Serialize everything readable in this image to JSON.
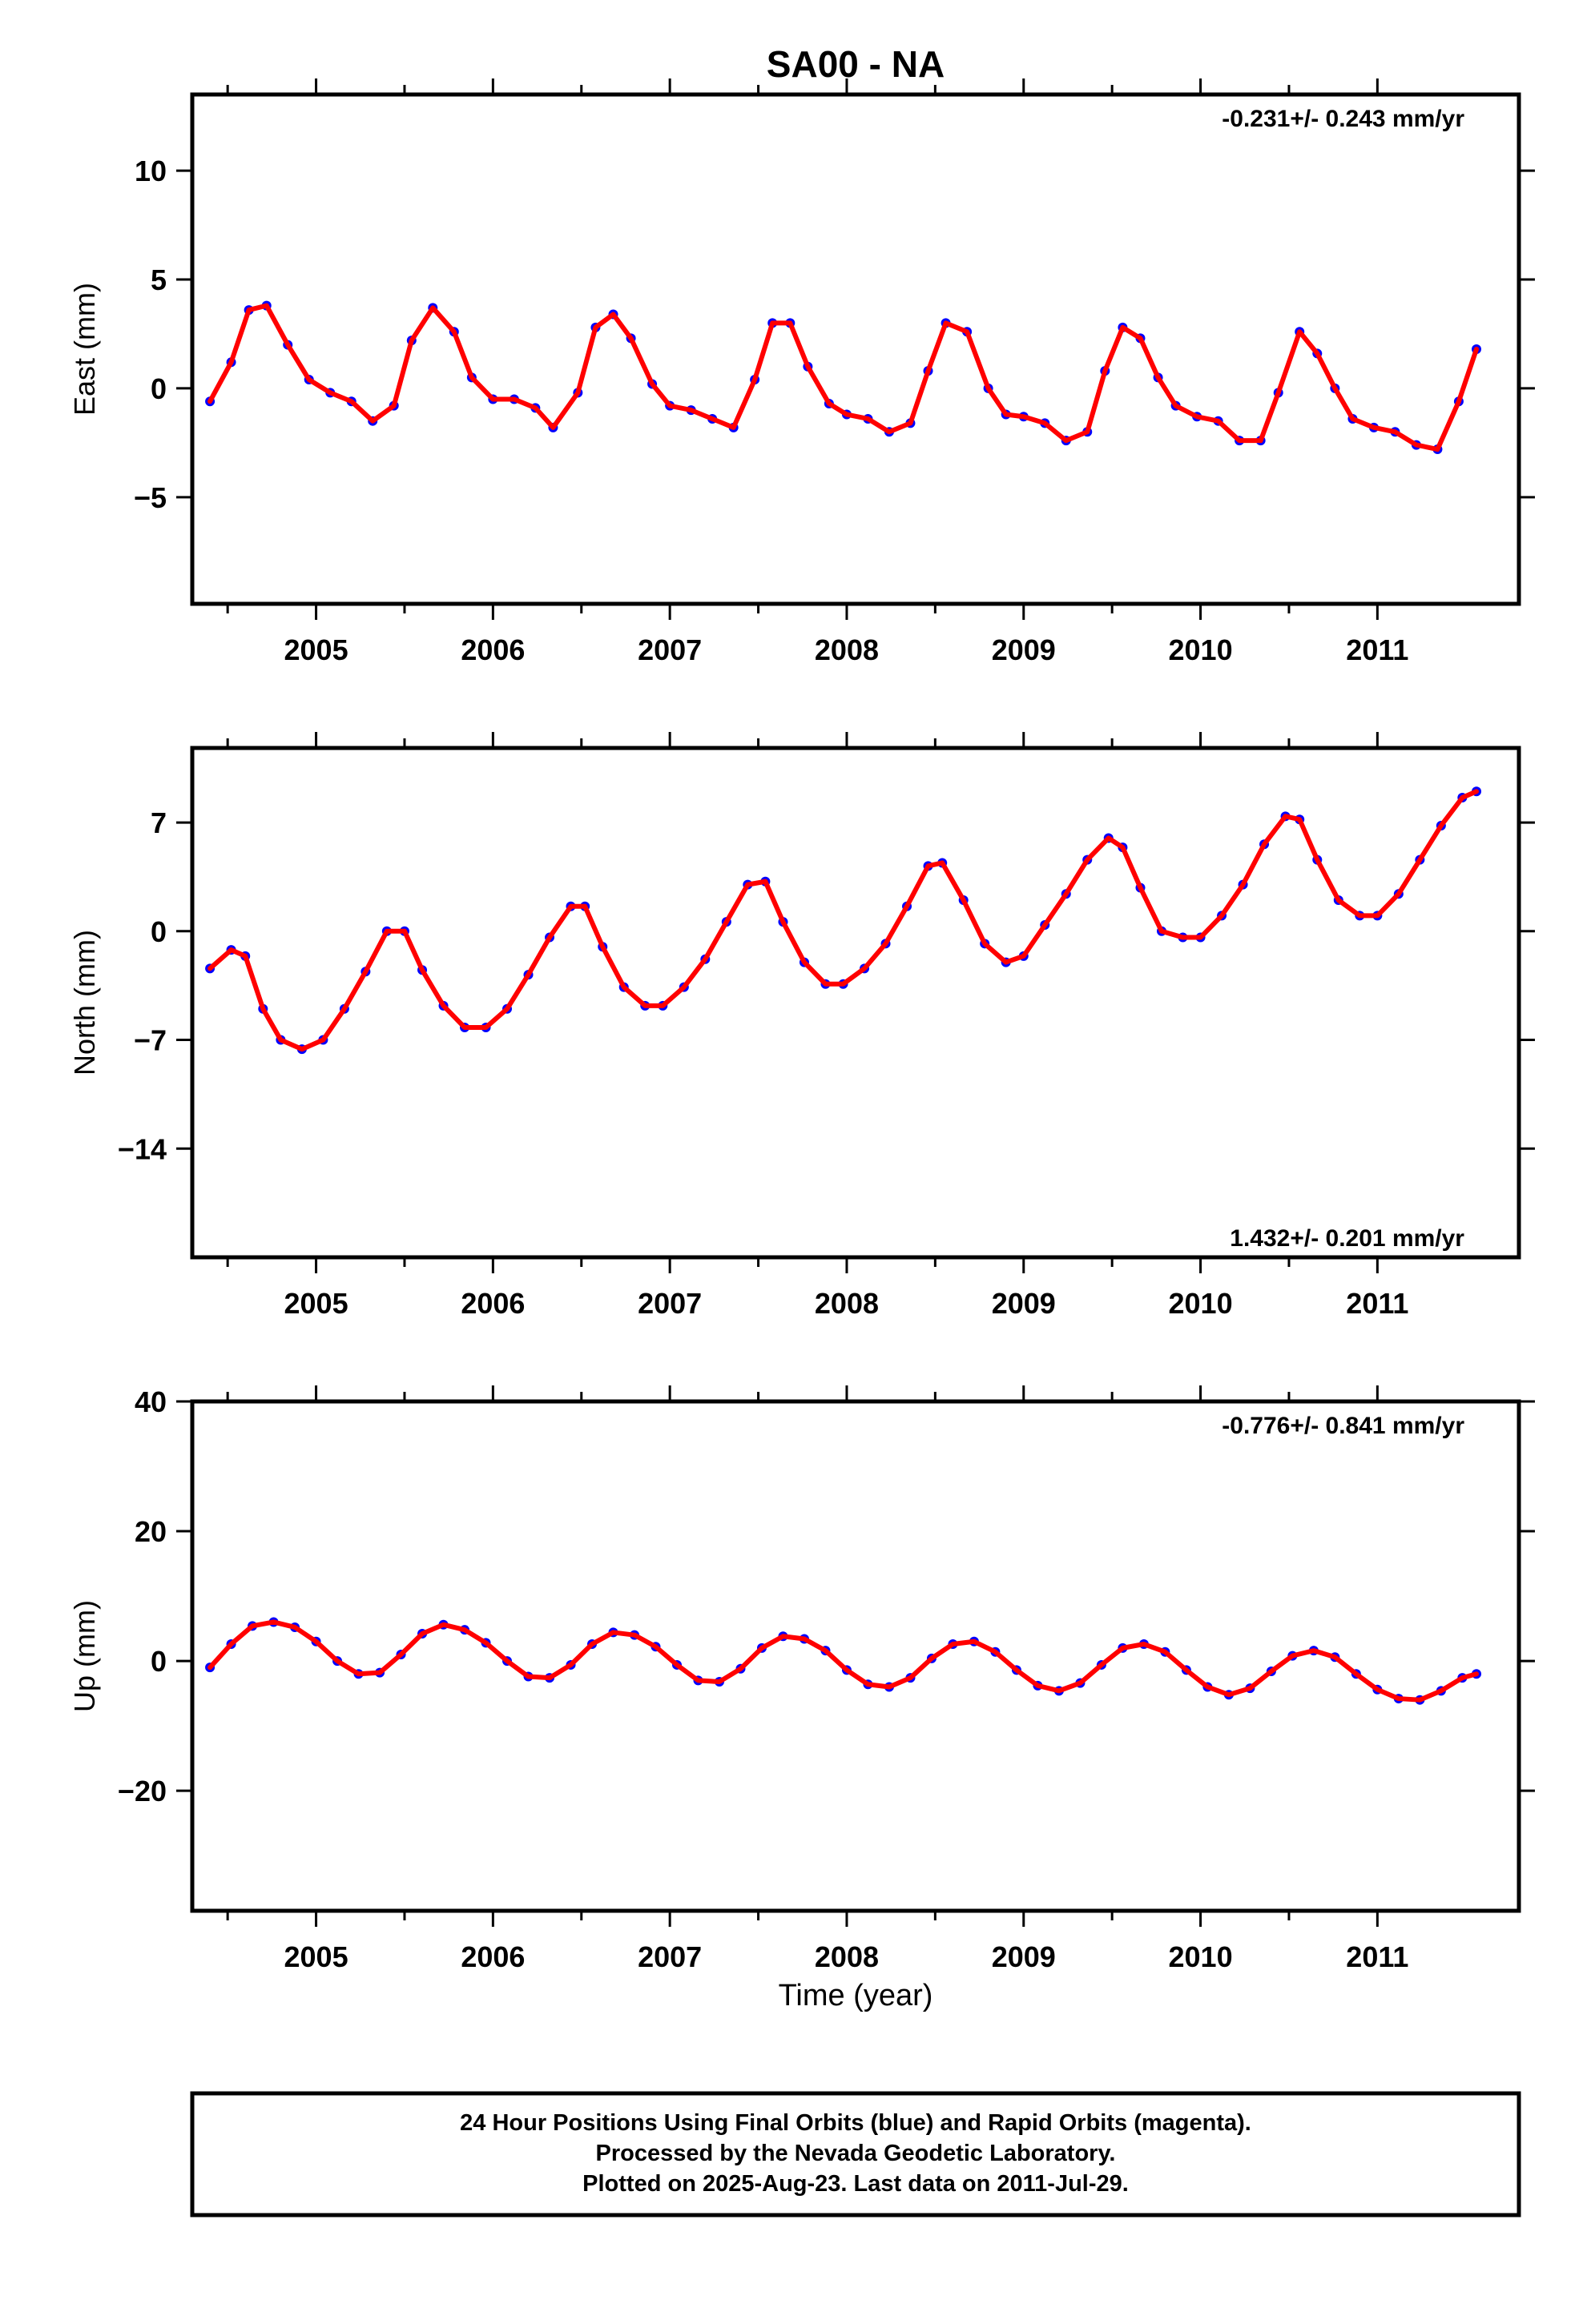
{
  "title": "SA00 - NA",
  "xlabel": "Time (year)",
  "footer": {
    "line1": "24 Hour Positions Using Final Orbits (blue) and Rapid Orbits (magenta).",
    "line2": "Processed by the Nevada Geodetic Laboratory.",
    "line3": "Plotted on 2025-Aug-23. Last data on 2011-Jul-29."
  },
  "colors": {
    "points": "#0000ff",
    "model": "#ff0000",
    "frame": "#000000"
  },
  "chart_data": [
    {
      "type": "scatter",
      "ylabel": "East (mm)",
      "rate_label": "-0.231+/- 0.243 mm/yr",
      "xlim": [
        2004.3,
        2011.8
      ],
      "ylim": [
        -9.9,
        13.5
      ],
      "yticks": [
        -5,
        0,
        5,
        10
      ],
      "yticklabels": [
        "−5",
        "0",
        "5",
        "10"
      ],
      "xticks": [
        2005,
        2006,
        2007,
        2008,
        2009,
        2010,
        2011
      ],
      "xticklabels": [
        "2005",
        "2006",
        "2007",
        "2008",
        "2009",
        "2010",
        "2011"
      ],
      "series": [
        {
          "x": [
            2004.4,
            2004.52,
            2004.62,
            2004.72,
            2004.84,
            2004.96,
            2005.08,
            2005.2,
            2005.32,
            2005.44,
            2005.54,
            2005.66,
            2005.78,
            2005.88,
            2006.0,
            2006.12,
            2006.24,
            2006.34,
            2006.48,
            2006.58,
            2006.68,
            2006.78,
            2006.9,
            2007.0,
            2007.12,
            2007.24,
            2007.36,
            2007.48,
            2007.58,
            2007.68,
            2007.78,
            2007.9,
            2008.0,
            2008.12,
            2008.24,
            2008.36,
            2008.46,
            2008.56,
            2008.68,
            2008.8,
            2008.9,
            2009.0,
            2009.12,
            2009.24,
            2009.36,
            2009.46,
            2009.56,
            2009.66,
            2009.76,
            2009.86,
            2009.98,
            2010.1,
            2010.22,
            2010.34,
            2010.44,
            2010.56,
            2010.66,
            2010.76,
            2010.86,
            2010.98,
            2011.1,
            2011.22,
            2011.34,
            2011.46,
            2011.56
          ],
          "y": [
            -0.6,
            1.2,
            3.6,
            3.8,
            2.0,
            0.4,
            -0.2,
            -0.6,
            -1.5,
            -0.8,
            2.2,
            3.7,
            2.6,
            0.5,
            -0.5,
            -0.5,
            -0.9,
            -1.8,
            -0.2,
            2.8,
            3.4,
            2.3,
            0.2,
            -0.8,
            -1.0,
            -1.4,
            -1.8,
            0.4,
            3.0,
            3.0,
            1.0,
            -0.7,
            -1.2,
            -1.4,
            -2.0,
            -1.6,
            0.8,
            3.0,
            2.6,
            0.0,
            -1.2,
            -1.3,
            -1.6,
            -2.4,
            -2.0,
            0.8,
            2.8,
            2.3,
            0.5,
            -0.8,
            -1.3,
            -1.5,
            -2.4,
            -2.4,
            -0.2,
            2.6,
            1.6,
            0.0,
            -1.4,
            -1.8,
            -2.0,
            -2.6,
            -2.8,
            -0.6,
            1.8
          ]
        }
      ]
    },
    {
      "type": "scatter",
      "ylabel": "North (mm)",
      "rate_label": "1.432+/- 0.201 mm/yr",
      "xlim": [
        2004.3,
        2011.8
      ],
      "ylim": [
        -21.0,
        11.8
      ],
      "yticks": [
        -14,
        -7,
        0,
        7
      ],
      "yticklabels": [
        "−14",
        "−7",
        "0",
        "7"
      ],
      "xticks": [
        2005,
        2006,
        2007,
        2008,
        2009,
        2010,
        2011
      ],
      "xticklabels": [
        "2005",
        "2006",
        "2007",
        "2008",
        "2009",
        "2010",
        "2011"
      ],
      "series": [
        {
          "x": [
            2004.4,
            2004.52,
            2004.6,
            2004.7,
            2004.8,
            2004.92,
            2005.04,
            2005.16,
            2005.28,
            2005.4,
            2005.5,
            2005.6,
            2005.72,
            2005.84,
            2005.96,
            2006.08,
            2006.2,
            2006.32,
            2006.44,
            2006.52,
            2006.62,
            2006.74,
            2006.86,
            2006.96,
            2007.08,
            2007.2,
            2007.32,
            2007.44,
            2007.54,
            2007.64,
            2007.76,
            2007.88,
            2007.98,
            2008.1,
            2008.22,
            2008.34,
            2008.46,
            2008.54,
            2008.66,
            2008.78,
            2008.9,
            2009.0,
            2009.12,
            2009.24,
            2009.36,
            2009.48,
            2009.56,
            2009.66,
            2009.78,
            2009.9,
            2010.0,
            2010.12,
            2010.24,
            2010.36,
            2010.48,
            2010.56,
            2010.66,
            2010.78,
            2010.9,
            2011.0,
            2011.12,
            2011.24,
            2011.36,
            2011.48,
            2011.56
          ],
          "y": [
            -2.4,
            -1.2,
            -1.6,
            -5.0,
            -7.0,
            -7.6,
            -7.0,
            -5.0,
            -2.6,
            0.0,
            0.0,
            -2.5,
            -4.8,
            -6.2,
            -6.2,
            -5.0,
            -2.8,
            -0.4,
            1.6,
            1.6,
            -1.0,
            -3.6,
            -4.8,
            -4.8,
            -3.6,
            -1.8,
            0.6,
            3.0,
            3.2,
            0.6,
            -2.0,
            -3.4,
            -3.4,
            -2.4,
            -0.8,
            1.6,
            4.2,
            4.4,
            2.0,
            -0.8,
            -2.0,
            -1.6,
            0.4,
            2.4,
            4.6,
            6.0,
            5.4,
            2.8,
            0.0,
            -0.4,
            -0.4,
            1.0,
            3.0,
            5.6,
            7.4,
            7.2,
            4.6,
            2.0,
            1.0,
            1.0,
            2.4,
            4.6,
            6.8,
            8.6,
            9.0
          ]
        }
      ]
    },
    {
      "type": "scatter",
      "ylabel": "Up (mm)",
      "rate_label": "-0.776+/- 0.841 mm/yr",
      "xlim": [
        2004.3,
        2011.8
      ],
      "ylim": [
        -38.5,
        40.0
      ],
      "yticks": [
        -20,
        0,
        20,
        40
      ],
      "yticklabels": [
        "−20",
        "0",
        "20",
        "40"
      ],
      "xticks": [
        2005,
        2006,
        2007,
        2008,
        2009,
        2010,
        2011
      ],
      "xticklabels": [
        "2005",
        "2006",
        "2007",
        "2008",
        "2009",
        "2010",
        "2011"
      ],
      "series": [
        {
          "x": [
            2004.4,
            2004.52,
            2004.64,
            2004.76,
            2004.88,
            2005.0,
            2005.12,
            2005.24,
            2005.36,
            2005.48,
            2005.6,
            2005.72,
            2005.84,
            2005.96,
            2006.08,
            2006.2,
            2006.32,
            2006.44,
            2006.56,
            2006.68,
            2006.8,
            2006.92,
            2007.04,
            2007.16,
            2007.28,
            2007.4,
            2007.52,
            2007.64,
            2007.76,
            2007.88,
            2008.0,
            2008.12,
            2008.24,
            2008.36,
            2008.48,
            2008.6,
            2008.72,
            2008.84,
            2008.96,
            2009.08,
            2009.2,
            2009.32,
            2009.44,
            2009.56,
            2009.68,
            2009.8,
            2009.92,
            2010.04,
            2010.16,
            2010.28,
            2010.4,
            2010.52,
            2010.64,
            2010.76,
            2010.88,
            2011.0,
            2011.12,
            2011.24,
            2011.36,
            2011.48,
            2011.56
          ],
          "y": [
            -1.0,
            2.6,
            5.4,
            6.0,
            5.2,
            3.0,
            0.0,
            -2.0,
            -1.8,
            1.0,
            4.2,
            5.6,
            4.8,
            2.8,
            0.0,
            -2.4,
            -2.6,
            -0.6,
            2.6,
            4.4,
            4.0,
            2.2,
            -0.6,
            -3.0,
            -3.2,
            -1.2,
            2.0,
            3.8,
            3.4,
            1.6,
            -1.4,
            -3.6,
            -4.0,
            -2.6,
            0.4,
            2.6,
            3.0,
            1.4,
            -1.4,
            -3.8,
            -4.6,
            -3.4,
            -0.6,
            2.0,
            2.6,
            1.4,
            -1.4,
            -4.0,
            -5.2,
            -4.2,
            -1.6,
            0.8,
            1.6,
            0.6,
            -2.0,
            -4.4,
            -5.8,
            -6.0,
            -4.6,
            -2.6,
            -2.0
          ]
        }
      ]
    }
  ]
}
